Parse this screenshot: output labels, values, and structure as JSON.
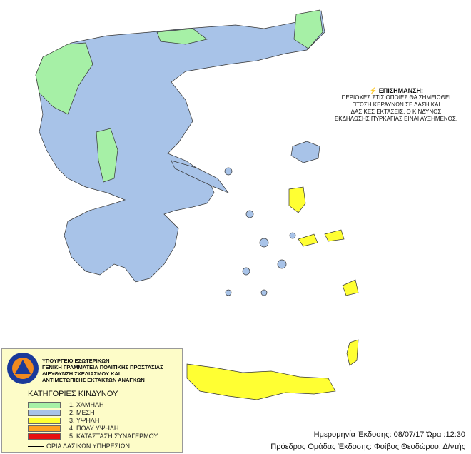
{
  "notice": {
    "icon": "lightning-icon",
    "title": "ΕΠΙΣΗΜΑΝΣΗ:",
    "lines": [
      "ΠΕΡΙΟΧΕΣ ΣΤΙΣ ΟΠΟΙΕΣ ΘΑ ΣΗΜΕΙΩΘΕΙ",
      "ΠΤΩΣΗ ΚΕΡΑΥΝΩΝ ΣΕ ΔΑΣΗ ΚΑΙ",
      "ΔΑΣΙΚΕΣ ΕΚΤΑΣΕΙΣ, Ο ΚΙΝΔΥΝΟΣ",
      "ΕΚΔΗΛΩΣΗΣ ΠΥΡΚΑΓΙΑΣ ΕΙΝΑΙ ΑΥΞΗΜΕΝΟΣ."
    ]
  },
  "legend": {
    "logo_text": [
      "ΠΟΛΙΤΙΚΗ ΠΡΟΣΤΑΣΙΑ",
      "ΕΛΛΑΔΑ"
    ],
    "org": [
      "ΥΠΟΥΡΓΕΙΟ ΕΣΩΤΕΡΙΚΩΝ",
      "ΓΕΝΙΚΗ ΓΡΑΜΜΑΤΕΙΑ ΠΟΛΙΤΙΚΗΣ ΠΡΟΣΤΑΣΙΑΣ",
      "ΔΙΕΥΘΥΝΣΗ ΣΧΕΔΙΑΣΜΟΥ ΚΑΙ",
      "ΑΝΤΙΜΕΤΩΠΙΣΗΣ ΕΚΤΑΚΤΩΝ ΑΝΑΓΚΩΝ"
    ],
    "title": "ΚΑΤΗΓΟΡΙΕΣ ΚΙΝΔΥΝΟΥ",
    "categories": [
      {
        "label": "1. ΧΑΜΗΛΗ",
        "color": "#a6f0a6"
      },
      {
        "label": "2. ΜΕΣΗ",
        "color": "#a8c3e8"
      },
      {
        "label": "3. ΥΨΗΛΗ",
        "color": "#ffff33"
      },
      {
        "label": "4. ΠΟΛΥ ΥΨΗΛΗ",
        "color": "#ffa020"
      },
      {
        "label": "5. ΚΑΤΑΣΤΑΣΗ ΣΥΝΑΓΕΡΜΟΥ",
        "color": "#e81010"
      }
    ],
    "border_label": "ΟΡΙΑ ΔΑΣΙΚΩΝ ΥΠΗΡΕΣΙΩΝ"
  },
  "issue": {
    "date_line": "Ημερομηνία Έκδοσης: 08/07/17  Ώρα :12:30",
    "author_line": "Πρόεδρος Ομάδας Έκδοσης: Φοίβος Θεοδώρου, Δ/ντής"
  }
}
